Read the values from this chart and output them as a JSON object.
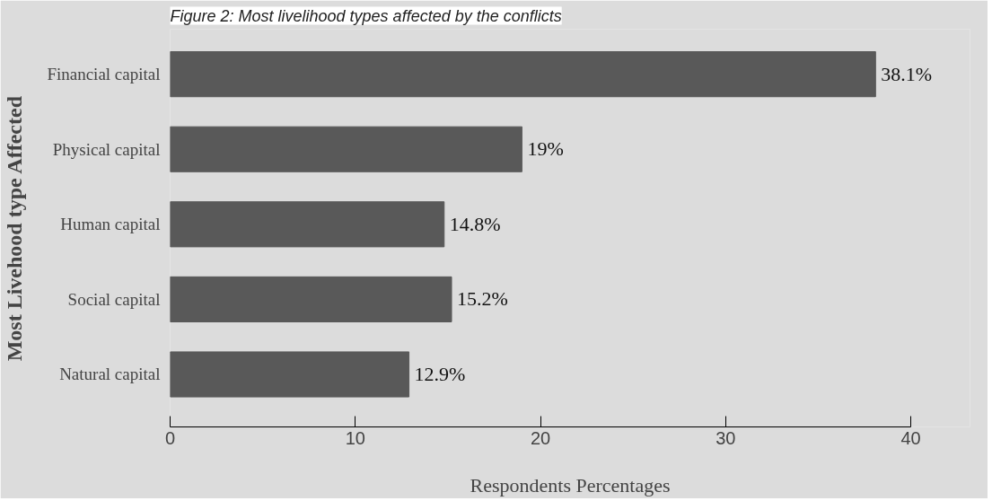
{
  "chart_data": {
    "type": "bar",
    "orientation": "horizontal",
    "title": "Figure 2: Most livelihood types affected by the conflicts",
    "xlabel": "Respondents Percentages",
    "ylabel": "Most Livehood type Affected",
    "categories": [
      "Financial capital",
      "Physical capital",
      "Human capital",
      "Social capital",
      "Natural capital"
    ],
    "values": [
      38.1,
      19,
      14.8,
      15.2,
      12.9
    ],
    "value_labels": [
      "38.1%",
      "19%",
      "14.8%",
      "15.2%",
      "12.9%"
    ],
    "color": "#595959",
    "xlim": [
      0,
      40
    ],
    "xticks": [
      0,
      10,
      20,
      30,
      40
    ],
    "grid": false
  }
}
